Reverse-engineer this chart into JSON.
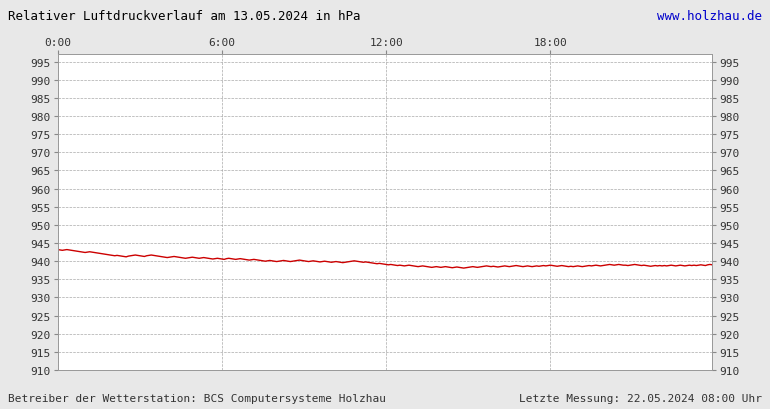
{
  "title": "Relativer Luftdruckverlauf am 13.05.2024 in hPa",
  "url_text": "www.holzhau.de",
  "footer_left": "Betreiber der Wetterstation: BCS Computersysteme Holzhau",
  "footer_right": "Letzte Messung: 22.05.2024 08:00 Uhr",
  "bg_color": "#e8e8e8",
  "plot_bg_color": "#ffffff",
  "line_color": "#cc0000",
  "grid_color": "#aaaaaa",
  "tick_color": "#333333",
  "title_color": "#000000",
  "url_color": "#0000cc",
  "footer_color": "#333333",
  "xlim": [
    0,
    287
  ],
  "ylim": [
    910,
    997
  ],
  "yticks": [
    910,
    915,
    920,
    925,
    930,
    935,
    940,
    945,
    950,
    955,
    960,
    965,
    970,
    975,
    980,
    985,
    990,
    995
  ],
  "xtick_positions": [
    0,
    72,
    144,
    216
  ],
  "xtick_labels": [
    "0:00",
    "6:00",
    "12:00",
    "18:00"
  ],
  "pressure_data": [
    943.2,
    943.1,
    943.0,
    943.1,
    943.2,
    943.1,
    943.0,
    942.9,
    942.8,
    942.7,
    942.6,
    942.5,
    942.4,
    942.5,
    942.6,
    942.5,
    942.4,
    942.3,
    942.2,
    942.1,
    942.0,
    941.9,
    941.8,
    941.7,
    941.6,
    941.5,
    941.6,
    941.5,
    941.4,
    941.3,
    941.2,
    941.4,
    941.5,
    941.6,
    941.7,
    941.6,
    941.5,
    941.4,
    941.3,
    941.5,
    941.6,
    941.7,
    941.6,
    941.5,
    941.4,
    941.3,
    941.2,
    941.1,
    941.0,
    941.1,
    941.2,
    941.3,
    941.2,
    941.1,
    941.0,
    940.9,
    940.8,
    940.9,
    941.0,
    941.1,
    941.0,
    940.9,
    940.8,
    940.9,
    941.0,
    940.9,
    940.8,
    940.7,
    940.6,
    940.7,
    940.8,
    940.7,
    940.6,
    940.5,
    940.7,
    940.8,
    940.7,
    940.6,
    940.5,
    940.6,
    940.7,
    940.6,
    940.5,
    940.4,
    940.3,
    940.4,
    940.5,
    940.4,
    940.3,
    940.2,
    940.1,
    940.0,
    940.1,
    940.2,
    940.1,
    940.0,
    939.9,
    940.0,
    940.1,
    940.2,
    940.1,
    940.0,
    939.9,
    940.0,
    940.1,
    940.2,
    940.3,
    940.2,
    940.1,
    940.0,
    939.9,
    940.0,
    940.1,
    940.0,
    939.9,
    939.8,
    939.9,
    940.0,
    939.9,
    939.8,
    939.7,
    939.8,
    939.9,
    939.8,
    939.7,
    939.6,
    939.7,
    939.8,
    939.9,
    940.0,
    940.1,
    940.0,
    939.9,
    939.8,
    939.7,
    939.8,
    939.7,
    939.6,
    939.5,
    939.4,
    939.3,
    939.4,
    939.3,
    939.2,
    939.1,
    939.0,
    939.1,
    939.0,
    938.9,
    938.8,
    938.9,
    938.8,
    938.7,
    938.8,
    938.9,
    938.8,
    938.7,
    938.6,
    938.5,
    938.6,
    938.7,
    938.6,
    938.5,
    938.4,
    938.3,
    938.4,
    938.5,
    938.4,
    938.3,
    938.4,
    938.5,
    938.4,
    938.3,
    938.2,
    938.3,
    938.4,
    938.3,
    938.2,
    938.1,
    938.2,
    938.3,
    938.4,
    938.5,
    938.4,
    938.3,
    938.4,
    938.5,
    938.6,
    938.7,
    938.6,
    938.5,
    938.6,
    938.5,
    938.4,
    938.5,
    938.6,
    938.7,
    938.6,
    938.5,
    938.6,
    938.7,
    938.8,
    938.7,
    938.6,
    938.5,
    938.6,
    938.7,
    938.6,
    938.5,
    938.6,
    938.7,
    938.6,
    938.7,
    938.8,
    938.7,
    938.8,
    938.9,
    938.8,
    938.7,
    938.6,
    938.7,
    938.8,
    938.7,
    938.6,
    938.5,
    938.6,
    938.5,
    938.6,
    938.7,
    938.6,
    938.5,
    938.6,
    938.7,
    938.8,
    938.7,
    938.8,
    938.9,
    938.8,
    938.7,
    938.8,
    938.9,
    939.0,
    939.1,
    939.0,
    938.9,
    939.0,
    939.1,
    939.0,
    938.9,
    938.9,
    938.8,
    938.9,
    939.0,
    939.1,
    939.0,
    938.9,
    938.8,
    938.9,
    938.8,
    938.7,
    938.6,
    938.7,
    938.8,
    938.7,
    938.8,
    938.7,
    938.8,
    938.7,
    938.8,
    938.9,
    938.8,
    938.7,
    938.8,
    938.9,
    938.8,
    938.7,
    938.8,
    938.9,
    938.8,
    938.9,
    938.8,
    938.9,
    939.0,
    938.9,
    938.8,
    939.0,
    939.1,
    939.0
  ]
}
